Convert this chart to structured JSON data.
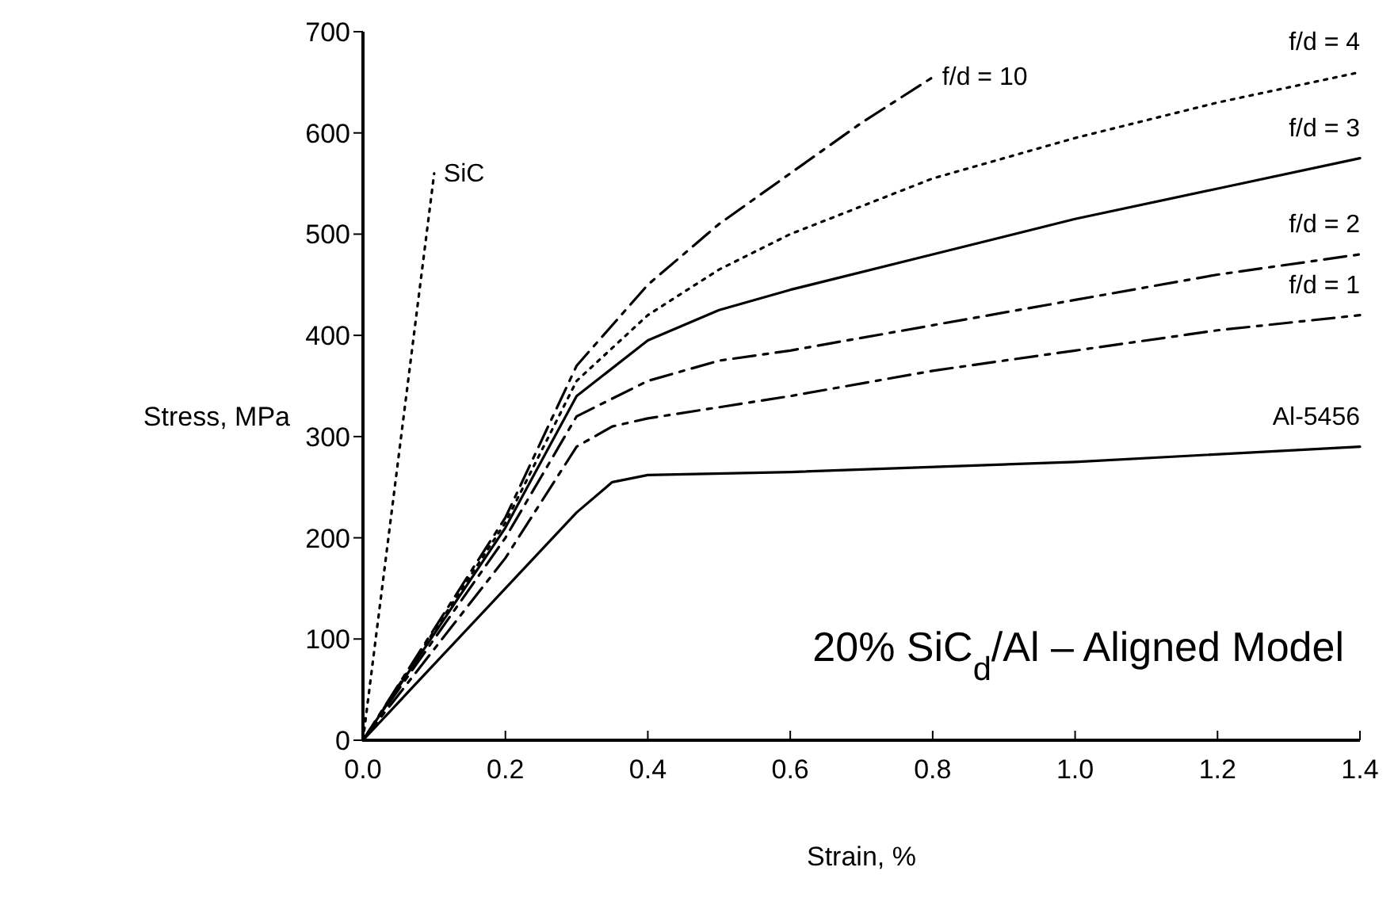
{
  "chart_data": {
    "type": "line",
    "xlabel": "Strain, %",
    "ylabel": "Stress, MPa",
    "xlim": [
      0,
      1.4
    ],
    "ylim": [
      0,
      700
    ],
    "xticks": [
      {
        "value": 0,
        "label": "0.0"
      },
      0.2,
      0.4,
      0.6,
      0.8,
      {
        "value": 1,
        "label": "1.0"
      },
      1.2,
      1.4
    ],
    "yticks": [
      0,
      100,
      200,
      300,
      400,
      500,
      600,
      700
    ],
    "grid": false,
    "marker": "none",
    "annotations": [
      "20% SiC$_{d}$/Al – Aligned Model"
    ],
    "series": [
      {
        "name": "SiC",
        "color": "#000000",
        "line_style": "dotted",
        "x": [
          0,
          0.1
        ],
        "values": [
          0,
          560
        ]
      },
      {
        "name": "f/d = 10",
        "color": "#000000",
        "line_style": "dashed",
        "x": [
          0,
          0.1,
          0.2,
          0.3,
          0.4,
          0.5,
          0.6,
          0.7,
          0.8
        ],
        "values": [
          0,
          110,
          220,
          370,
          450,
          510,
          560,
          610,
          655
        ]
      },
      {
        "name": "f/d = 4",
        "color": "#000000",
        "line_style": "dotted",
        "x": [
          0,
          0.1,
          0.2,
          0.3,
          0.4,
          0.5,
          0.6,
          0.8,
          1.0,
          1.2,
          1.4
        ],
        "values": [
          0,
          108,
          215,
          355,
          420,
          465,
          500,
          555,
          595,
          630,
          660
        ]
      },
      {
        "name": "f/d = 3",
        "color": "#000000",
        "line_style": "solid",
        "x": [
          0,
          0.1,
          0.2,
          0.3,
          0.4,
          0.5,
          0.6,
          0.8,
          1.0,
          1.2,
          1.4
        ],
        "values": [
          0,
          105,
          210,
          340,
          395,
          425,
          445,
          480,
          515,
          545,
          575
        ]
      },
      {
        "name": "f/d = 2",
        "color": "#000000",
        "line_style": "dashed",
        "x": [
          0,
          0.1,
          0.2,
          0.3,
          0.4,
          0.5,
          0.6,
          0.8,
          1.0,
          1.2,
          1.4
        ],
        "values": [
          0,
          100,
          200,
          320,
          355,
          375,
          385,
          410,
          435,
          460,
          480
        ]
      },
      {
        "name": "f/d = 1",
        "color": "#000000",
        "line_style": "dashed",
        "x": [
          0,
          0.1,
          0.2,
          0.3,
          0.35,
          0.4,
          0.6,
          0.8,
          1.0,
          1.2,
          1.4
        ],
        "values": [
          0,
          90,
          180,
          290,
          310,
          318,
          340,
          365,
          385,
          405,
          420
        ]
      },
      {
        "name": "Al-5456",
        "color": "#000000",
        "line_style": "solid",
        "x": [
          0,
          0.1,
          0.2,
          0.3,
          0.35,
          0.4,
          0.6,
          1.0,
          1.4
        ],
        "values": [
          0,
          75,
          150,
          225,
          255,
          262,
          265,
          275,
          290
        ]
      }
    ]
  }
}
